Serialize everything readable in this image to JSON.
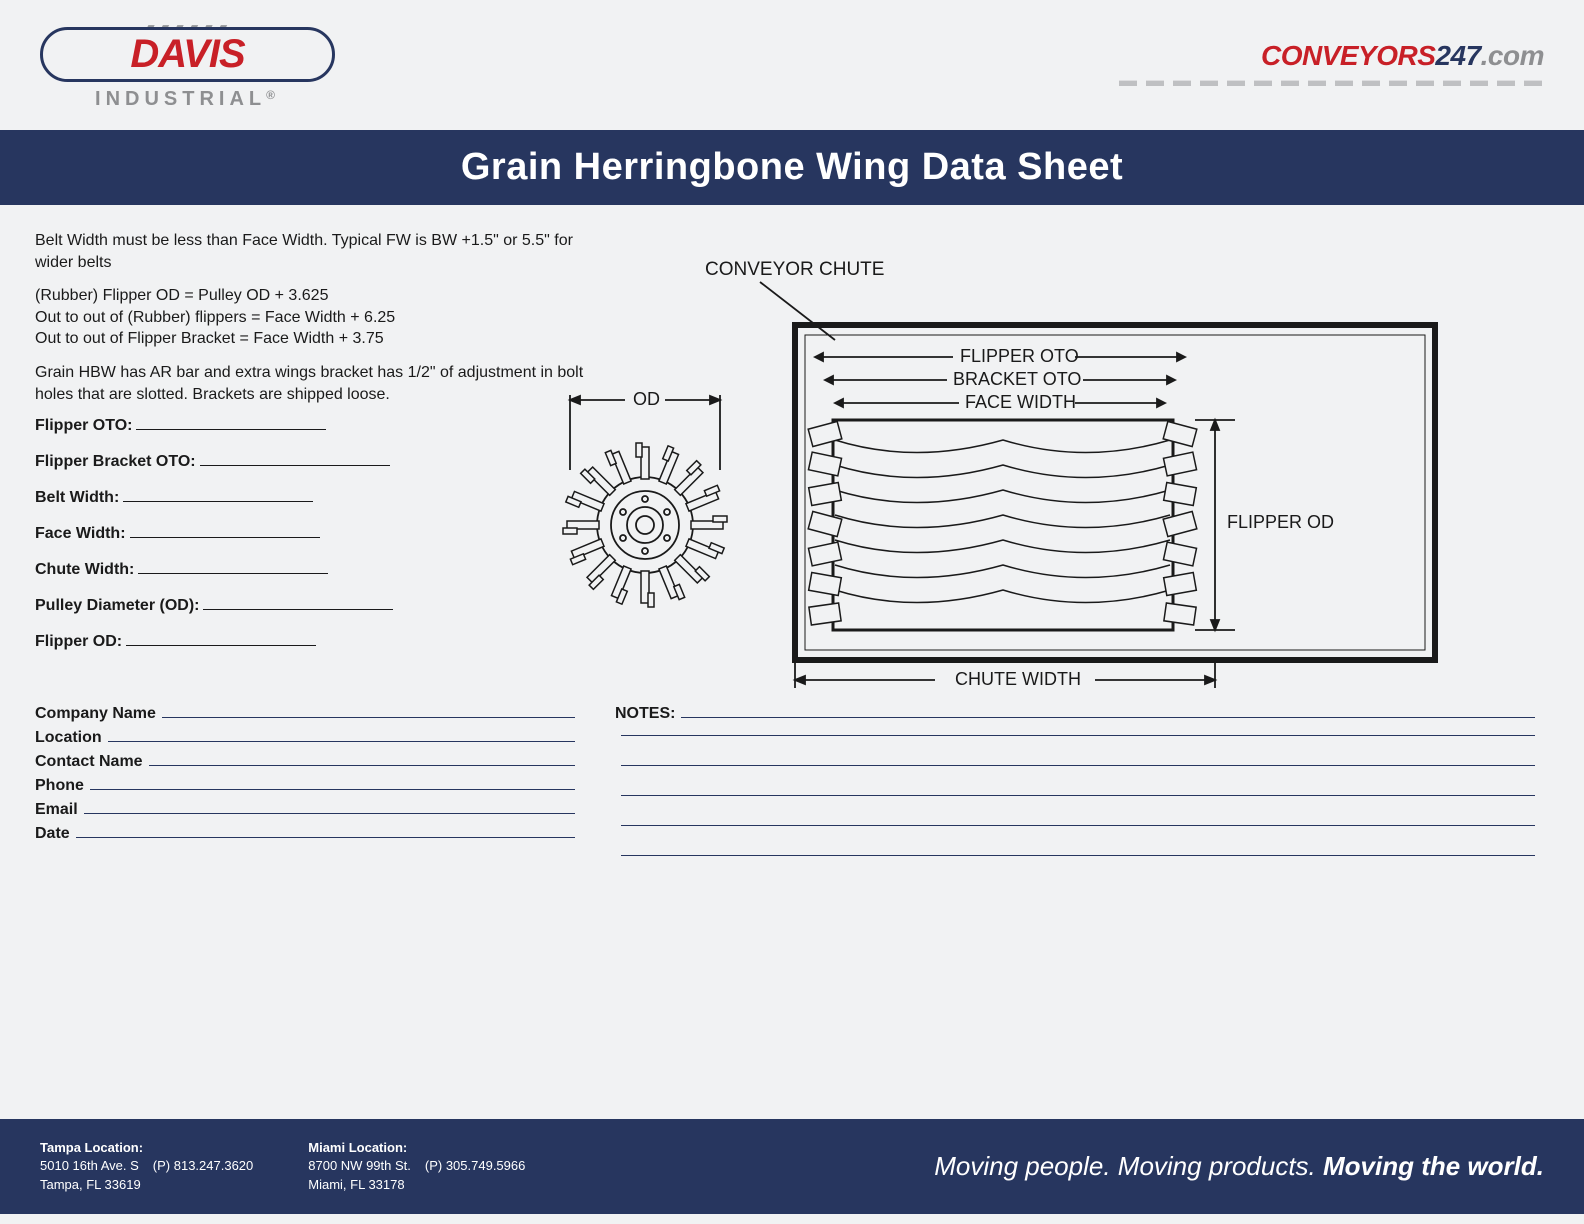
{
  "logo": {
    "davis": "DAVIS",
    "industrial": "INDUSTRIAL",
    "reg": "®",
    "conveyors_pre": "CONVEYORS",
    "conveyors_num": "247",
    "conveyors_com": ".com"
  },
  "title": "Grain Herringbone Wing Data Sheet",
  "specs": {
    "p1": "Belt Width must be less than Face Width. Typical FW is BW +1.5\" or 5.5\" for wider belts",
    "p2": "(Rubber) Flipper OD = Pulley OD + 3.625\nOut to out of (Rubber) flippers = Face Width + 6.25\nOut to out of Flipper Bracket = Face Width + 3.75",
    "p3": "Grain HBW has AR bar and extra wings bracket has 1/2\" of adjustment in bolt holes that are slotted. Brackets are shipped loose."
  },
  "fields": {
    "items": [
      "Flipper OTO:",
      "Flipper Bracket OTO:",
      "Belt Width:",
      "Face Width:",
      "Chute Width:",
      "Pulley Diameter (OD):",
      "Flipper OD:"
    ]
  },
  "contact": {
    "items": [
      "Company Name",
      "Location",
      "Contact Name",
      "Phone",
      "Email",
      "Date"
    ]
  },
  "notes": {
    "label": "NOTES:",
    "lines": 6
  },
  "diagram": {
    "chute_label": "CONVEYOR CHUTE",
    "od_label": "OD",
    "flipper_oto": "FLIPPER OTO",
    "bracket_oto": "BRACKET OTO",
    "face_width": "FACE WIDTH",
    "chute_width": "CHUTE WIDTH",
    "flipper_od": "FLIPPER OD",
    "stroke": "#1a1a1a",
    "stroke_width": 1.8
  },
  "footer": {
    "loc1": {
      "title": "Tampa Location:",
      "addr1": "5010 16th Ave. S",
      "addr2": "Tampa, FL 33619",
      "phone": "(P) 813.247.3620"
    },
    "loc2": {
      "title": "Miami Location:",
      "addr1": "8700 NW 99th St.",
      "addr2": "Miami, FL 33178",
      "phone": "(P) 305.749.5966"
    },
    "tag1": "Moving people. ",
    "tag2": "Moving products. ",
    "tag3": "Moving the world."
  },
  "colors": {
    "navy": "#27365f",
    "red": "#c82027",
    "grey": "#8e8f91",
    "bg": "#f1f2f3"
  }
}
